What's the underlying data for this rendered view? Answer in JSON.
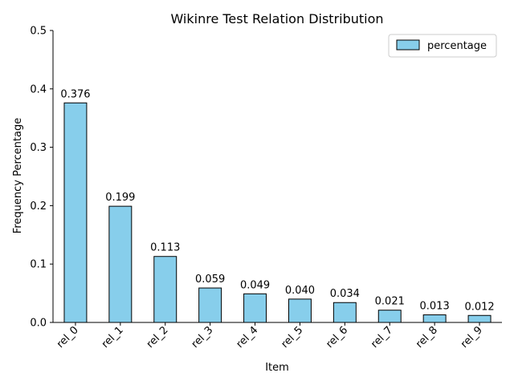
{
  "chart_data": {
    "type": "bar",
    "title": "Wikinre Test Relation Distribution",
    "xlabel": "Item",
    "ylabel": "Frequency Percentage",
    "categories": [
      "rel_0",
      "rel_1",
      "rel_2",
      "rel_3",
      "rel_4",
      "rel_5",
      "rel_6",
      "rel_7",
      "rel_8",
      "rel_9"
    ],
    "series": [
      {
        "name": "percentage",
        "values": [
          0.376,
          0.199,
          0.113,
          0.059,
          0.049,
          0.04,
          0.034,
          0.021,
          0.013,
          0.012
        ],
        "labels": [
          "0.376",
          "0.199",
          "0.113",
          "0.059",
          "0.049",
          "0.040",
          "0.034",
          "0.021",
          "0.013",
          "0.012"
        ],
        "color": "#87CEEB"
      }
    ],
    "ylim": [
      0,
      0.5
    ],
    "yticks": [
      0.0,
      0.1,
      0.2,
      0.3,
      0.4,
      0.5
    ],
    "ytick_labels": [
      "0.0",
      "0.1",
      "0.2",
      "0.3",
      "0.4",
      "0.5"
    ],
    "grid": false,
    "legend_position": "top-right",
    "bar_edge_color": "#000000"
  }
}
